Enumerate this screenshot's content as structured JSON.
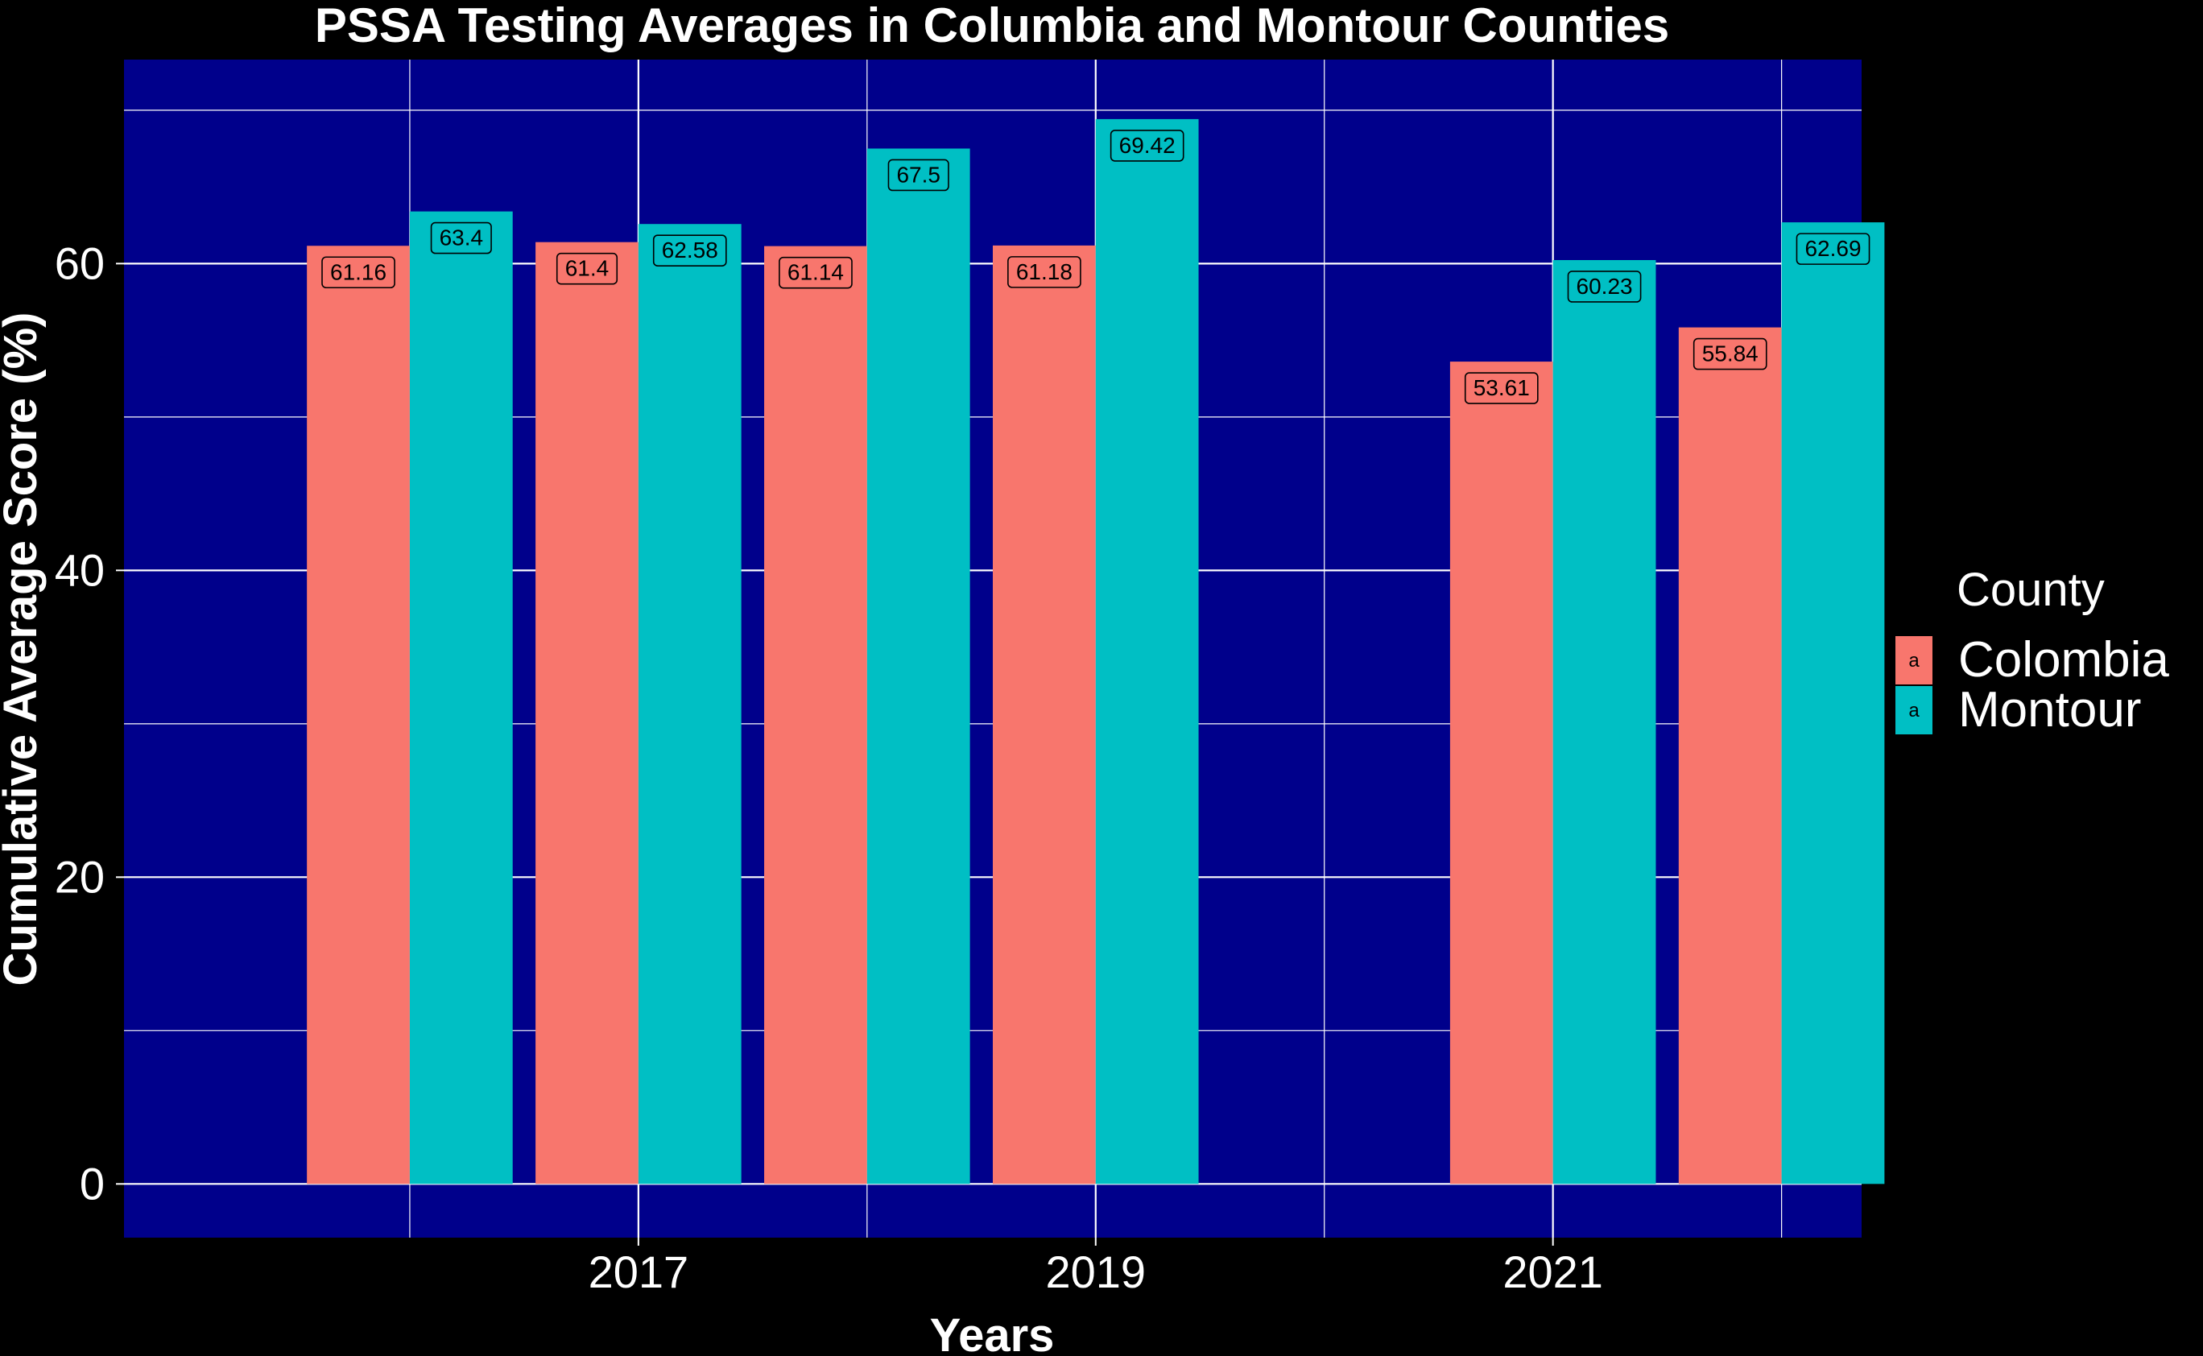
{
  "chart_data": {
    "type": "bar",
    "title": "PSSA Testing Averages in Columbia and Montour Counties",
    "xlabel": "Years",
    "ylabel": "Cumulative Average Score (%)",
    "x": [
      2016,
      2017,
      2018,
      2019,
      2021,
      2022
    ],
    "x_ticks": [
      2017,
      2019,
      2021
    ],
    "x_tick_labels": [
      "2017",
      "2019",
      "2021"
    ],
    "xlim": [
      2014.75,
      2022.35
    ],
    "ylim": [
      -3.5,
      73.3
    ],
    "y_ticks": [
      0,
      20,
      40,
      60
    ],
    "y_tick_labels": [
      "0",
      "20",
      "40",
      "60"
    ],
    "grid": true,
    "series": [
      {
        "name": "Colombia",
        "color": "#F8766D",
        "values": [
          61.16,
          61.4,
          61.14,
          61.18,
          53.61,
          55.84
        ],
        "labels": [
          "61.16",
          "61.4",
          "61.14",
          "61.18",
          "53.61",
          "55.84"
        ]
      },
      {
        "name": "Montour",
        "color": "#00BFC4",
        "values": [
          63.4,
          62.58,
          67.5,
          69.42,
          60.23,
          62.69
        ],
        "labels": [
          "63.4",
          "62.58",
          "67.5",
          "69.42",
          "60.23",
          "62.69"
        ]
      }
    ],
    "legend": {
      "title": "County",
      "placement": "right",
      "key_glyph": "a"
    },
    "colors": {
      "panel_background": "#00008B",
      "background": "#000000",
      "grid": "#ffffff"
    }
  }
}
